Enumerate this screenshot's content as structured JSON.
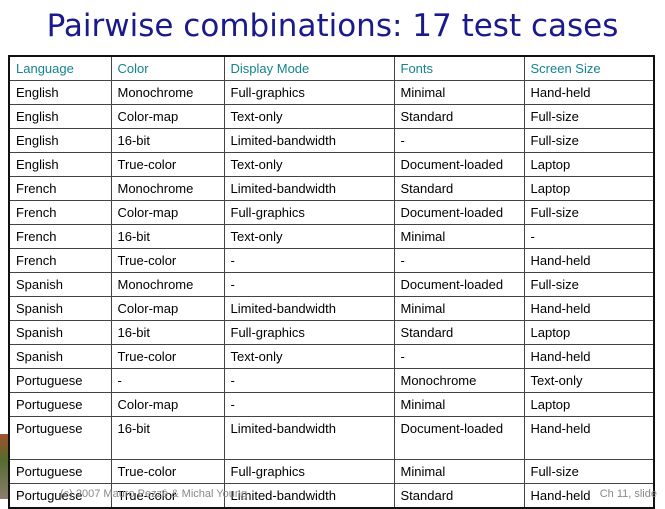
{
  "slide": {
    "title": "Pairwise combinations: 17 test cases",
    "footer_left": "(c) 2007 Mauro Pezzè & Michal Young",
    "footer_right": "Ch 11, slide"
  },
  "table": {
    "headers": [
      "Language",
      "Color",
      "Display Mode",
      "Fonts",
      "Screen Size"
    ],
    "rows": [
      [
        "English",
        "Monochrome",
        "Full-graphics",
        "Minimal",
        "Hand-held"
      ],
      [
        "English",
        "Color-map",
        "Text-only",
        "Standard",
        "Full-size"
      ],
      [
        "English",
        "16-bit",
        "Limited-bandwidth",
        "-",
        "Full-size"
      ],
      [
        "English",
        "True-color",
        "Text-only",
        "Document-loaded",
        "Laptop"
      ],
      [
        "French",
        "Monochrome",
        "Limited-bandwidth",
        "Standard",
        "Laptop"
      ],
      [
        "French",
        "Color-map",
        "Full-graphics",
        "Document-loaded",
        "Full-size"
      ],
      [
        "French",
        "16-bit",
        "Text-only",
        "Minimal",
        "-"
      ],
      [
        "French",
        "True-color",
        "-",
        "-",
        "Hand-held"
      ],
      [
        "Spanish",
        "Monochrome",
        "-",
        "Document-loaded",
        "Full-size"
      ],
      [
        "Spanish",
        "Color-map",
        "Limited-bandwidth",
        "Minimal",
        "Hand-held"
      ],
      [
        "Spanish",
        "16-bit",
        "Full-graphics",
        "Standard",
        "Laptop"
      ],
      [
        "Spanish",
        "True-color",
        "Text-only",
        "-",
        "Hand-held"
      ],
      [
        "Portuguese",
        "-",
        "-",
        "Monochrome",
        "Text-only"
      ],
      [
        "Portuguese",
        "Color-map",
        "-",
        "Minimal",
        "Laptop"
      ],
      [
        "Portuguese",
        "16-bit",
        "Limited-bandwidth",
        "Document-loaded",
        "Hand-held"
      ],
      [
        "Portuguese",
        "True-color",
        "Full-graphics",
        "Minimal",
        "Full-size"
      ],
      [
        "Portuguese",
        "True-color",
        "Limited-bandwidth",
        "Standard",
        "Hand-held"
      ]
    ]
  }
}
